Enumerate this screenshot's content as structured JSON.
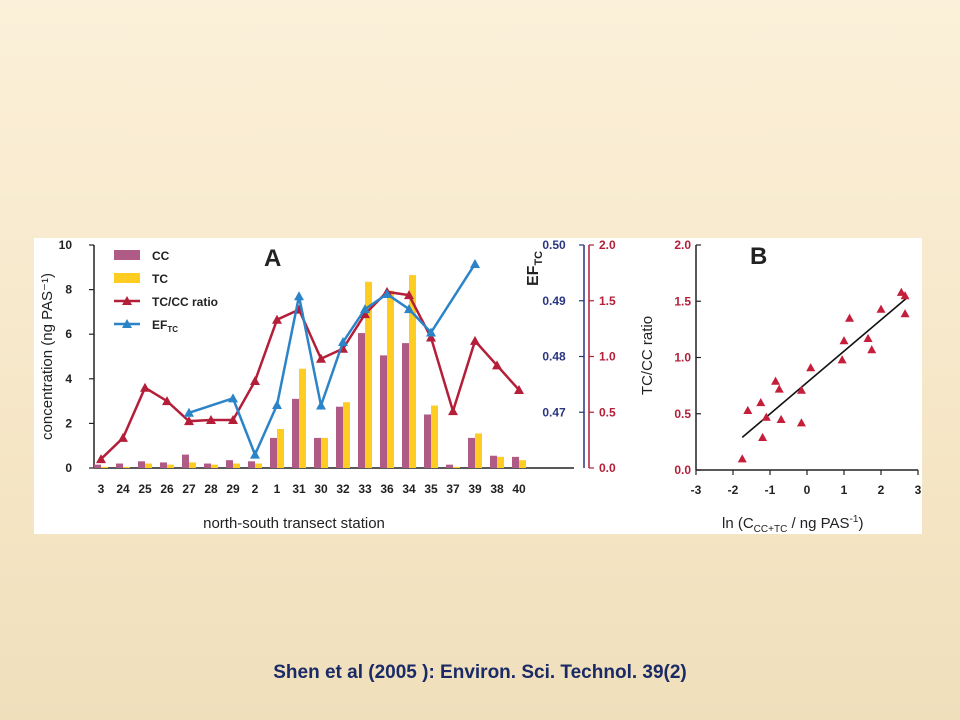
{
  "citation": "Shen et al  (2005 ): Environ. Sci. Technol. 39(2)",
  "colors": {
    "cc": "#b05a86",
    "tc": "#ffcc22",
    "ratio": "#b41e38",
    "ef": "#2c84c8",
    "ef_axis": "#2a3580",
    "scatter": "#c41e3a",
    "axis": "#222222"
  },
  "chart_data": [
    {
      "type": "bar",
      "panel_label": "A",
      "xlabel": "north-south transect station",
      "ylabel_left": "concentration (ng PAS⁻¹)",
      "ylabel_ef": "EF",
      "ylabel_ef_sub": "TC",
      "ylim_left": [
        0,
        10
      ],
      "yticks_left": [
        "0",
        "2",
        "4",
        "6",
        "8",
        "10"
      ],
      "ylim_ef": [
        0.46,
        0.5
      ],
      "yticks_ef": [
        "0.47",
        "0.48",
        "0.49",
        "0.50"
      ],
      "ylim_ratio": [
        0,
        2
      ],
      "yticks_ratio": [
        "0.0",
        "0.5",
        "1.0",
        "1.5",
        "2.0"
      ],
      "categories": [
        "3",
        "24",
        "25",
        "26",
        "27",
        "28",
        "29",
        "2",
        "1",
        "31",
        "30",
        "32",
        "33",
        "36",
        "34",
        "35",
        "37",
        "39",
        "38",
        "40"
      ],
      "legend": [
        {
          "label": "CC",
          "kind": "bar-cc"
        },
        {
          "label": "TC",
          "kind": "bar-tc"
        },
        {
          "label": "TC/CC ratio",
          "kind": "line-ratio"
        },
        {
          "label": "EF",
          "sub": "TC",
          "kind": "line-ef"
        }
      ],
      "series": [
        {
          "name": "CC",
          "axis": "left",
          "values": [
            0.15,
            0.2,
            0.3,
            0.25,
            0.6,
            0.2,
            0.35,
            0.3,
            1.35,
            3.1,
            1.35,
            2.75,
            6.05,
            5.05,
            5.6,
            2.4,
            0.15,
            1.35,
            0.55,
            0.5
          ]
        },
        {
          "name": "TC",
          "axis": "left",
          "values": [
            0.05,
            0.05,
            0.2,
            0.15,
            0.25,
            0.15,
            0.2,
            0.2,
            1.75,
            4.45,
            1.35,
            2.95,
            8.35,
            7.95,
            8.65,
            2.8,
            0.05,
            1.55,
            0.5,
            0.35
          ]
        },
        {
          "name": "TC/CC ratio",
          "axis": "ratio",
          "values": [
            0.08,
            0.27,
            0.72,
            0.6,
            0.42,
            0.43,
            0.43,
            0.78,
            1.33,
            1.42,
            0.98,
            1.07,
            1.38,
            1.58,
            1.55,
            1.17,
            0.51,
            1.14,
            0.92,
            0.7
          ]
        },
        {
          "name": "EF",
          "axis": "ef",
          "x": [
            "27",
            "29",
            "2",
            "1",
            "31",
            "30",
            "32",
            "33",
            "36",
            "34",
            "35",
            "39"
          ],
          "values": [
            0.4699,
            0.4725,
            0.4624,
            0.4713,
            0.4908,
            0.4712,
            0.4826,
            0.4885,
            0.4912,
            0.4885,
            0.4843,
            0.4966
          ]
        }
      ]
    },
    {
      "type": "scatter",
      "panel_label": "B",
      "ylabel": "TC/CC ratio",
      "xlabel_main": "ln (C",
      "xlabel_sub": "CC+TC",
      "xlabel_rest": " / ng PAS",
      "xlabel_sup": "-1",
      "xlabel_end": ")",
      "xlim": [
        -3,
        3
      ],
      "ylim": [
        0,
        2
      ],
      "xticks": [
        "-3",
        "-2",
        "-1",
        "0",
        "1",
        "2",
        "3"
      ],
      "yticks": [
        "0.0",
        "0.5",
        "1.0",
        "1.5",
        "2.0"
      ],
      "points": [
        {
          "x": -1.75,
          "y": 0.1
        },
        {
          "x": -1.6,
          "y": 0.53
        },
        {
          "x": -1.25,
          "y": 0.6
        },
        {
          "x": -1.2,
          "y": 0.29
        },
        {
          "x": -1.1,
          "y": 0.47
        },
        {
          "x": -0.85,
          "y": 0.79
        },
        {
          "x": -0.75,
          "y": 0.72
        },
        {
          "x": -0.7,
          "y": 0.45
        },
        {
          "x": -0.15,
          "y": 0.42
        },
        {
          "x": -0.15,
          "y": 0.71
        },
        {
          "x": 0.1,
          "y": 0.91
        },
        {
          "x": 0.95,
          "y": 0.98
        },
        {
          "x": 1.0,
          "y": 1.15
        },
        {
          "x": 1.15,
          "y": 1.35
        },
        {
          "x": 1.65,
          "y": 1.17
        },
        {
          "x": 1.75,
          "y": 1.07
        },
        {
          "x": 2.0,
          "y": 1.43
        },
        {
          "x": 2.55,
          "y": 1.58
        },
        {
          "x": 2.65,
          "y": 1.55
        },
        {
          "x": 2.65,
          "y": 1.39
        }
      ],
      "fit": {
        "x": [
          -1.75,
          2.7
        ],
        "y": [
          0.29,
          1.53
        ]
      }
    }
  ]
}
